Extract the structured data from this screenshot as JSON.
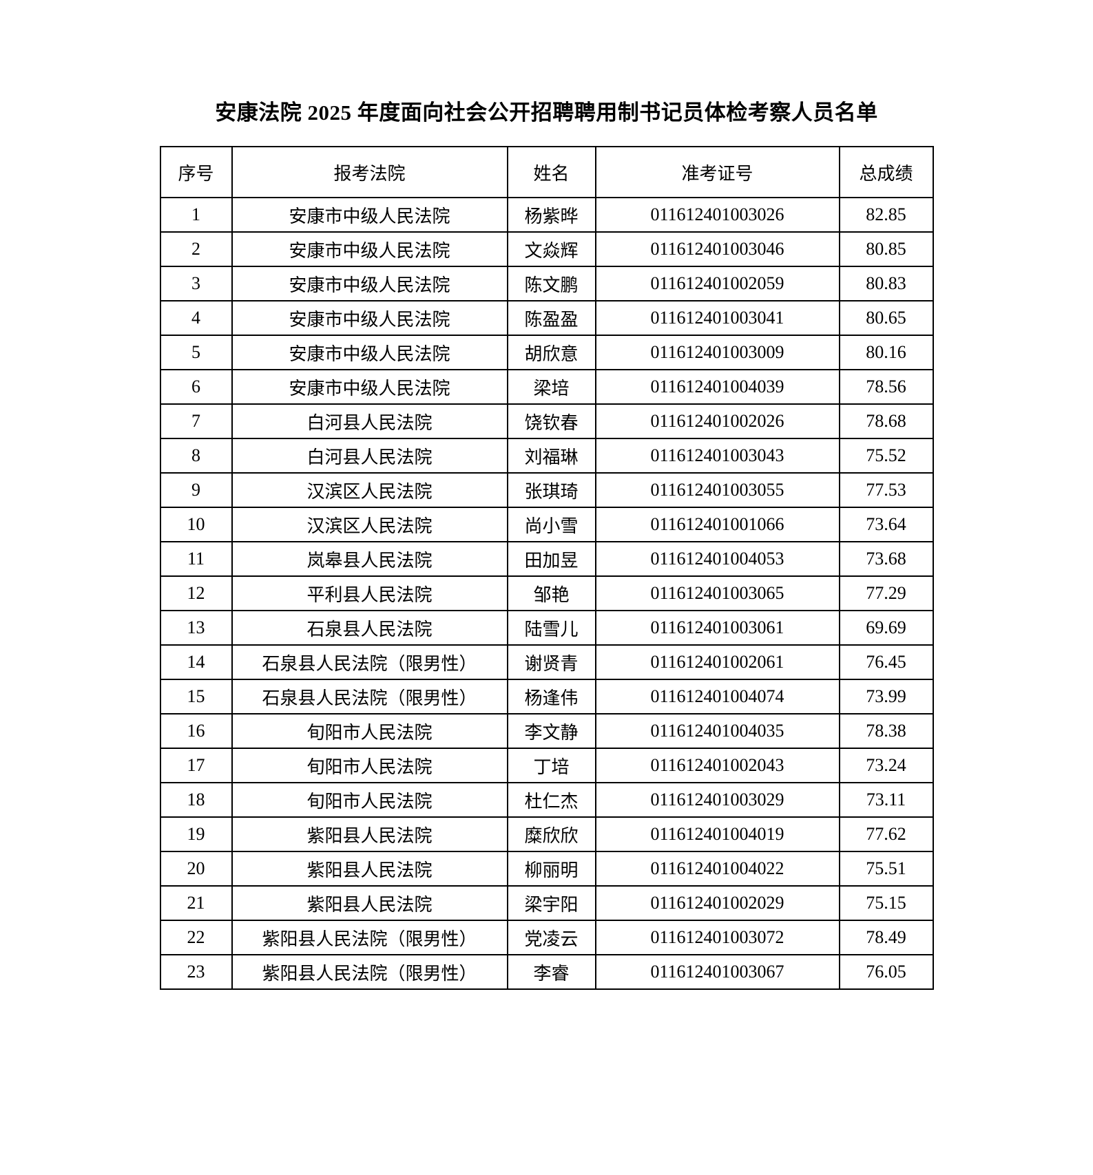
{
  "page": {
    "title": "安康法院 2025 年度面向社会公开招聘聘用制书记员体检考察人员名单"
  },
  "table": {
    "headers": [
      "序号",
      "报考法院",
      "姓名",
      "准考证号",
      "总成绩"
    ],
    "rows": [
      {
        "no": "1",
        "court": "安康市中级人民法院",
        "name": "杨紫晔",
        "exam_id": "011612401003026",
        "score": "82.85"
      },
      {
        "no": "2",
        "court": "安康市中级人民法院",
        "name": "文焱辉",
        "exam_id": "011612401003046",
        "score": "80.85"
      },
      {
        "no": "3",
        "court": "安康市中级人民法院",
        "name": "陈文鹏",
        "exam_id": "011612401002059",
        "score": "80.83"
      },
      {
        "no": "4",
        "court": "安康市中级人民法院",
        "name": "陈盈盈",
        "exam_id": "011612401003041",
        "score": "80.65"
      },
      {
        "no": "5",
        "court": "安康市中级人民法院",
        "name": "胡欣意",
        "exam_id": "011612401003009",
        "score": "80.16"
      },
      {
        "no": "6",
        "court": "安康市中级人民法院",
        "name": "梁培",
        "exam_id": "011612401004039",
        "score": "78.56"
      },
      {
        "no": "7",
        "court": "白河县人民法院",
        "name": "饶钦春",
        "exam_id": "011612401002026",
        "score": "78.68"
      },
      {
        "no": "8",
        "court": "白河县人民法院",
        "name": "刘福琳",
        "exam_id": "011612401003043",
        "score": "75.52"
      },
      {
        "no": "9",
        "court": "汉滨区人民法院",
        "name": "张琪琦",
        "exam_id": "011612401003055",
        "score": "77.53"
      },
      {
        "no": "10",
        "court": "汉滨区人民法院",
        "name": "尚小雪",
        "exam_id": "011612401001066",
        "score": "73.64"
      },
      {
        "no": "11",
        "court": "岚皋县人民法院",
        "name": "田加昱",
        "exam_id": "011612401004053",
        "score": "73.68"
      },
      {
        "no": "12",
        "court": "平利县人民法院",
        "name": "邹艳",
        "exam_id": "011612401003065",
        "score": "77.29"
      },
      {
        "no": "13",
        "court": "石泉县人民法院",
        "name": "陆雪儿",
        "exam_id": "011612401003061",
        "score": "69.69"
      },
      {
        "no": "14",
        "court": "石泉县人民法院（限男性）",
        "name": "谢贤青",
        "exam_id": "011612401002061",
        "score": "76.45"
      },
      {
        "no": "15",
        "court": "石泉县人民法院（限男性）",
        "name": "杨逢伟",
        "exam_id": "011612401004074",
        "score": "73.99"
      },
      {
        "no": "16",
        "court": "旬阳市人民法院",
        "name": "李文静",
        "exam_id": "011612401004035",
        "score": "78.38"
      },
      {
        "no": "17",
        "court": "旬阳市人民法院",
        "name": "丁培",
        "exam_id": "011612401002043",
        "score": "73.24"
      },
      {
        "no": "18",
        "court": "旬阳市人民法院",
        "name": "杜仁杰",
        "exam_id": "011612401003029",
        "score": "73.11"
      },
      {
        "no": "19",
        "court": "紫阳县人民法院",
        "name": "糜欣欣",
        "exam_id": "011612401004019",
        "score": "77.62"
      },
      {
        "no": "20",
        "court": "紫阳县人民法院",
        "name": "柳丽明",
        "exam_id": "011612401004022",
        "score": "75.51"
      },
      {
        "no": "21",
        "court": "紫阳县人民法院",
        "name": "梁宇阳",
        "exam_id": "011612401002029",
        "score": "75.15"
      },
      {
        "no": "22",
        "court": "紫阳县人民法院（限男性）",
        "name": "党凌云",
        "exam_id": "011612401003072",
        "score": "78.49"
      },
      {
        "no": "23",
        "court": "紫阳县人民法院（限男性）",
        "name": "李睿",
        "exam_id": "011612401003067",
        "score": "76.05"
      }
    ]
  }
}
